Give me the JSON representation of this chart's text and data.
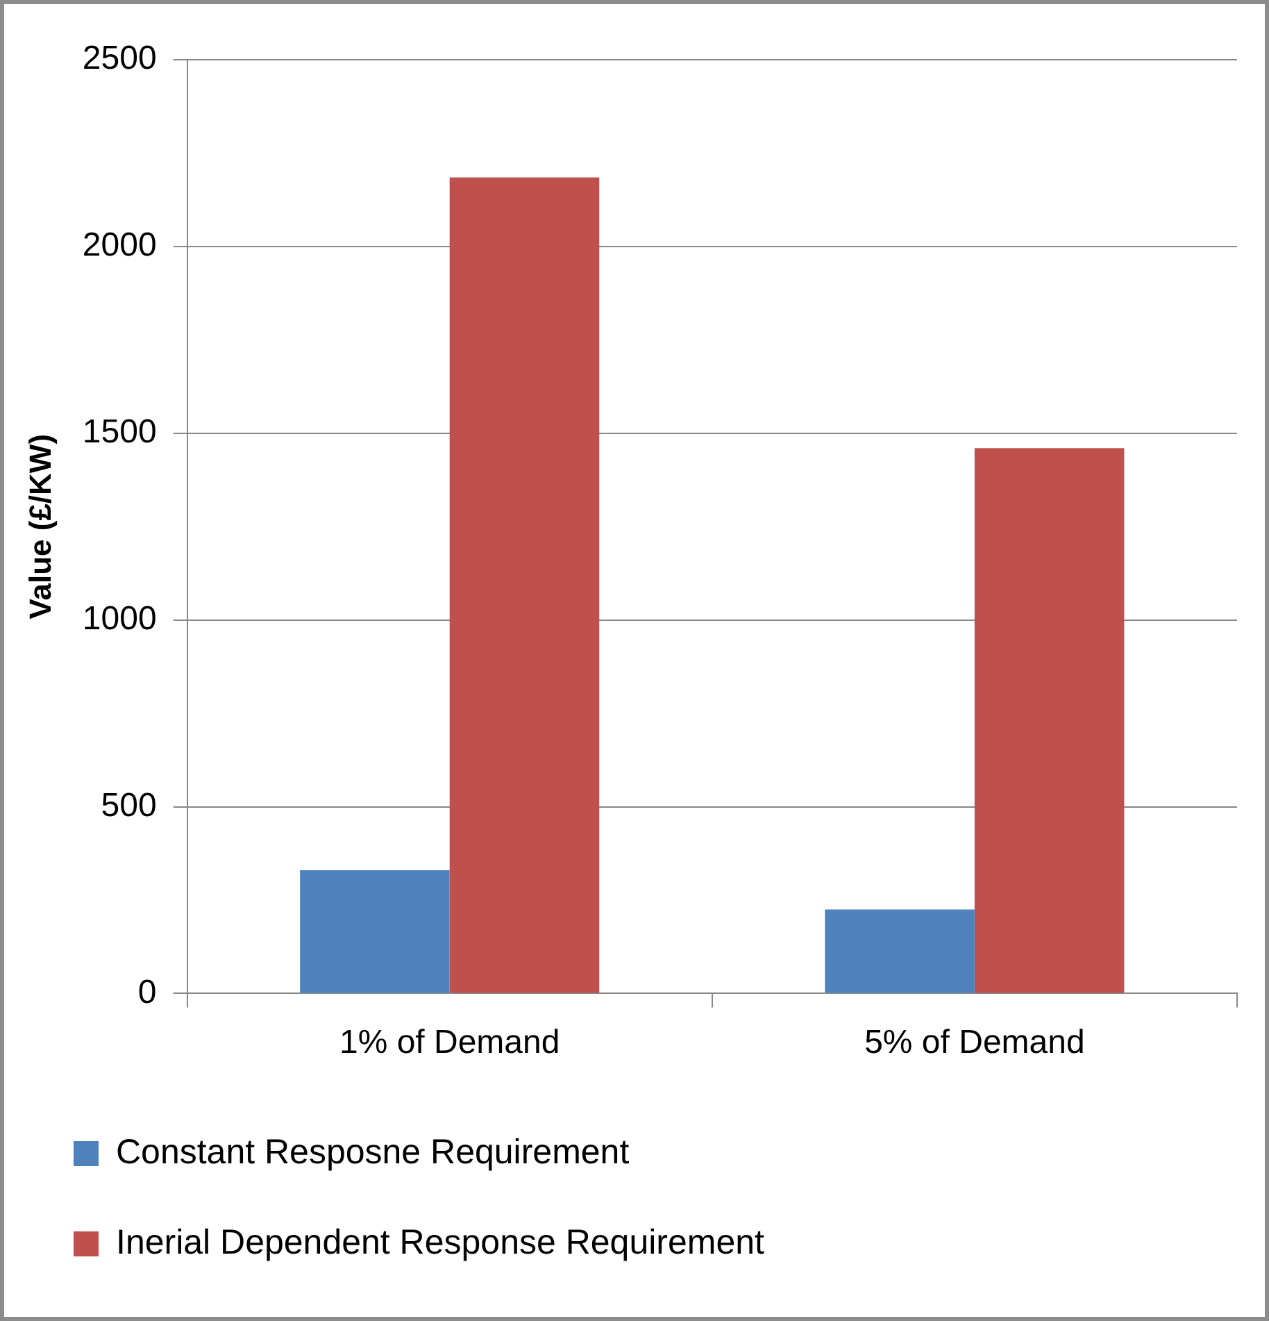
{
  "chart_data": {
    "type": "bar",
    "ylabel": "Value (£/KW)",
    "categories": [
      "1% of Demand",
      "5% of Demand"
    ],
    "series": [
      {
        "name": "Constant Resposne Requirement",
        "color": "#4f81bd",
        "values": [
          330,
          225
        ]
      },
      {
        "name": "Inerial Dependent Response Requirement",
        "color": "#c0504d",
        "values": [
          2185,
          1460
        ]
      }
    ],
    "ylim": [
      0,
      2500
    ],
    "yticks": [
      0,
      500,
      1000,
      1500,
      2000,
      2500
    ],
    "grid": "y",
    "legend": "bottom"
  }
}
